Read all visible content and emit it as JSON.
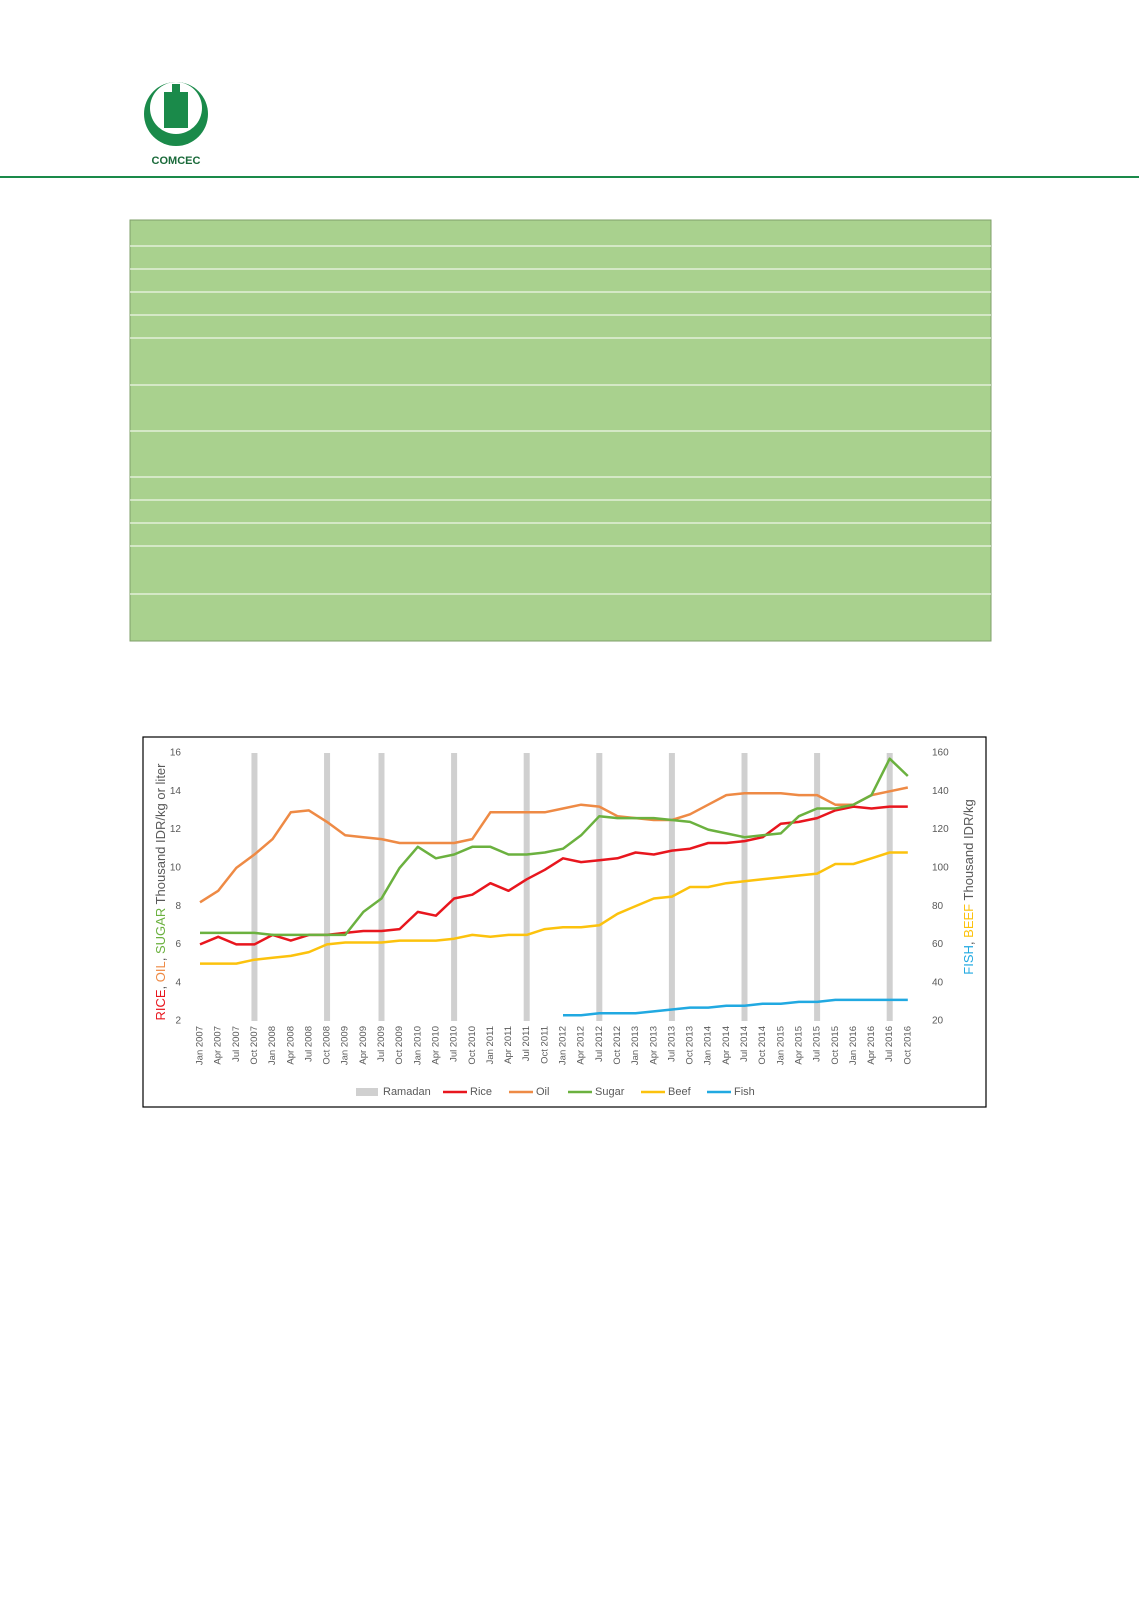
{
  "header": {
    "logo_text": "COMCEC"
  },
  "chart_data": {
    "type": "line",
    "ylabel_parts": [
      {
        "text": "RICE",
        "color": "#e8161e"
      },
      {
        "text": ", ",
        "color": "#595959"
      },
      {
        "text": "OIL",
        "color": "#ee8a45"
      },
      {
        "text": ", ",
        "color": "#595959"
      },
      {
        "text": "SUGAR",
        "color": "#6bb13f"
      },
      {
        "text": " Thousand IDR/kg or liter",
        "color": "#595959"
      }
    ],
    "y2label_parts": [
      {
        "text": "FISH",
        "color": "#21a9e1"
      },
      {
        "text": ", ",
        "color": "#595959"
      },
      {
        "text": "BEEF",
        "color": "#fcc20d"
      },
      {
        "text": " Thousand IDR/kg",
        "color": "#595959"
      }
    ],
    "categories": [
      "Jan 2007",
      "Apr 2007",
      "Jul 2007",
      "Oct 2007",
      "Jan 2008",
      "Apr 2008",
      "Jul 2008",
      "Oct 2008",
      "Jan 2009",
      "Apr 2009",
      "Jul 2009",
      "Oct 2009",
      "Jan 2010",
      "Apr 2010",
      "Jul 2010",
      "Oct 2010",
      "Jan 2011",
      "Apr 2011",
      "Jul 2011",
      "Oct 2011",
      "Jan 2012",
      "Apr 2012",
      "Jul 2012",
      "Oct 2012",
      "Jan 2013",
      "Apr 2013",
      "Jul 2013",
      "Oct 2013",
      "Jan 2014",
      "Apr 2014",
      "Jul 2014",
      "Oct 2014",
      "Jan 2015",
      "Apr 2015",
      "Jul 2015",
      "Oct 2015",
      "Jan 2016",
      "Apr 2016",
      "Jul 2016",
      "Oct 2016"
    ],
    "ylim": [
      2,
      16
    ],
    "yticks": [
      2,
      4,
      6,
      8,
      10,
      12,
      14,
      16
    ],
    "y2lim": [
      20,
      160
    ],
    "y2ticks": [
      20,
      40,
      60,
      80,
      100,
      120,
      140,
      160
    ],
    "series": [
      {
        "name": "Ramadan",
        "kind": "bar",
        "color": "#d0d0d0",
        "values": [
          null,
          null,
          null,
          16,
          null,
          null,
          null,
          16,
          null,
          null,
          16,
          null,
          null,
          null,
          16,
          null,
          null,
          null,
          16,
          null,
          null,
          null,
          16,
          null,
          null,
          null,
          16,
          null,
          null,
          null,
          16,
          null,
          null,
          null,
          16,
          null,
          null,
          null,
          16,
          null
        ]
      },
      {
        "name": "Rice",
        "color": "#e8161e",
        "values": [
          6.0,
          6.4,
          6.0,
          6.0,
          6.5,
          6.2,
          6.5,
          6.5,
          6.6,
          6.7,
          6.7,
          6.8,
          7.7,
          7.5,
          8.4,
          8.6,
          9.2,
          8.8,
          9.4,
          9.9,
          10.5,
          10.3,
          10.4,
          10.5,
          10.8,
          10.7,
          10.9,
          11.0,
          11.3,
          11.3,
          11.4,
          11.6,
          12.3,
          12.4,
          12.6,
          13.0,
          13.2,
          13.1,
          13.2,
          13.2
        ]
      },
      {
        "name": "Oil",
        "color": "#ee8a45",
        "values": [
          8.2,
          8.8,
          10.0,
          10.7,
          11.5,
          12.9,
          13.0,
          12.4,
          11.7,
          11.6,
          11.5,
          11.3,
          11.3,
          11.3,
          11.3,
          11.5,
          12.9,
          12.9,
          12.9,
          12.9,
          13.1,
          13.3,
          13.2,
          12.7,
          12.6,
          12.5,
          12.5,
          12.8,
          13.3,
          13.8,
          13.9,
          13.9,
          13.9,
          13.8,
          13.8,
          13.3,
          13.3,
          13.8,
          14.0,
          14.2
        ]
      },
      {
        "name": "Sugar",
        "color": "#6bb13f",
        "values": [
          6.6,
          6.6,
          6.6,
          6.6,
          6.5,
          6.5,
          6.5,
          6.5,
          6.5,
          7.7,
          8.4,
          10.0,
          11.1,
          10.5,
          10.7,
          11.1,
          11.1,
          10.7,
          10.7,
          10.8,
          11.0,
          11.7,
          12.7,
          12.6,
          12.6,
          12.6,
          12.5,
          12.4,
          12.0,
          11.8,
          11.6,
          11.7,
          11.8,
          12.7,
          13.1,
          13.1,
          13.3,
          13.8,
          15.7,
          14.8
        ]
      },
      {
        "name": "Beef",
        "color": "#fcc20d",
        "axis": "y2",
        "values": [
          50,
          50,
          50,
          52,
          53,
          54,
          56,
          60,
          61,
          61,
          61,
          62,
          62,
          62,
          63,
          65,
          64,
          65,
          65,
          68,
          69,
          69,
          70,
          76,
          80,
          84,
          85,
          90,
          90,
          92,
          93,
          94,
          95,
          96,
          97,
          102,
          102,
          105,
          108,
          108
        ]
      },
      {
        "name": "Fish",
        "color": "#21a9e1",
        "axis": "y2",
        "values": [
          null,
          null,
          null,
          null,
          null,
          null,
          null,
          null,
          null,
          null,
          null,
          null,
          null,
          null,
          null,
          null,
          null,
          null,
          null,
          null,
          23,
          23,
          24,
          24,
          24,
          25,
          26,
          27,
          27,
          28,
          28,
          29,
          29,
          30,
          30,
          31,
          31,
          31,
          31,
          31
        ]
      }
    ]
  }
}
